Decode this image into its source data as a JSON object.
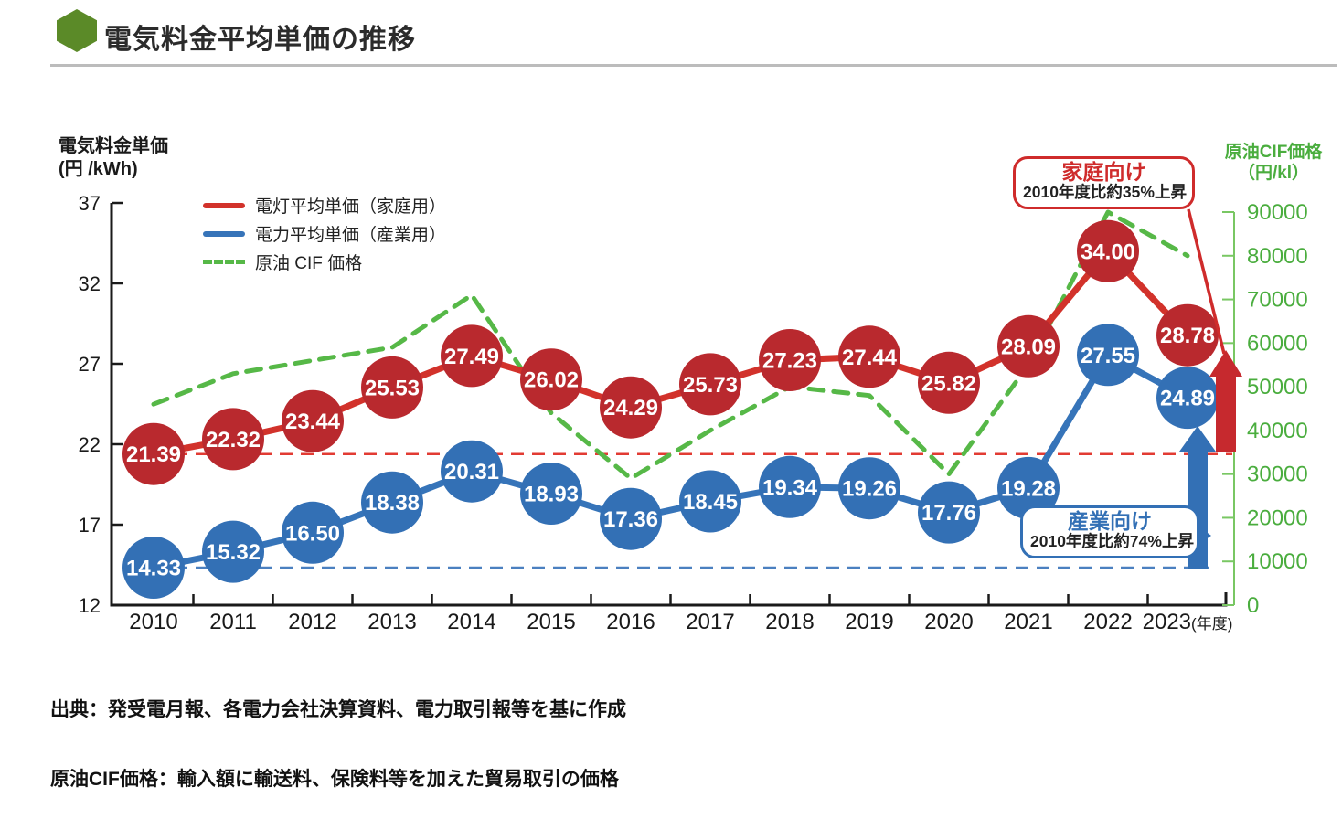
{
  "header": {
    "title": "電気料金平均単価の推移"
  },
  "chart_data": {
    "type": "line",
    "categories": [
      "2010",
      "2011",
      "2012",
      "2013",
      "2014",
      "2015",
      "2016",
      "2017",
      "2018",
      "2019",
      "2020",
      "2021",
      "2022",
      "2023"
    ],
    "x_suffix": "(年度)",
    "left_axis": {
      "title_line1": "電気料金単価",
      "title_line2": "(円 /kWh)",
      "ticks": [
        12,
        17,
        22,
        27,
        32,
        37
      ],
      "range": [
        12,
        37
      ]
    },
    "right_axis": {
      "title_line1": "原油CIF価格",
      "title_line2": "（円/kl）",
      "ticks": [
        0,
        10000,
        20000,
        30000,
        40000,
        50000,
        60000,
        70000,
        80000,
        90000
      ],
      "range": [
        0,
        90000
      ]
    },
    "series": [
      {
        "name": "電灯平均単価（家庭用）",
        "axis": "left",
        "line_color": "#d2322b",
        "marker_color": "#b9292e",
        "values": [
          21.39,
          22.32,
          23.44,
          25.53,
          27.49,
          26.02,
          24.29,
          25.73,
          27.23,
          27.44,
          25.82,
          28.09,
          34.0,
          28.78
        ]
      },
      {
        "name": "電力平均単価（産業用）",
        "axis": "left",
        "line_color": "#3674b9",
        "marker_color": "#3370b5",
        "values": [
          14.33,
          15.32,
          16.5,
          18.38,
          20.31,
          18.93,
          17.36,
          18.45,
          19.34,
          19.26,
          17.76,
          19.28,
          27.55,
          24.89
        ]
      },
      {
        "name": "原油 CIF 価格",
        "axis": "right",
        "style": "dashed",
        "line_color": "#56b847",
        "values": [
          46000,
          53000,
          56000,
          59000,
          71000,
          44000,
          29000,
          40000,
          50000,
          48000,
          30000,
          55000,
          90000,
          80000
        ]
      }
    ],
    "baselines": [
      {
        "value": 21.39,
        "color": "#e23b33",
        "label": "2010-household-level"
      },
      {
        "value": 14.33,
        "color": "#4b80c0",
        "label": "2010-industry-level"
      }
    ],
    "grid": false,
    "legend_position": "top-left-inside"
  },
  "annotations": {
    "household": {
      "title": "家庭向け",
      "subtitle": "2010年度比約35%上昇",
      "color": "#cf2b2b"
    },
    "industry": {
      "title": "産業向け",
      "subtitle": "2010年度比約74%上昇",
      "color": "#3370b5"
    }
  },
  "footer": {
    "source": "出典：発受電月報、各電力会社決算資料、電力取引報等を基に作成",
    "note": "原油CIF価格：輸入額に輸送料、保険料等を加えた貿易取引の価格"
  }
}
